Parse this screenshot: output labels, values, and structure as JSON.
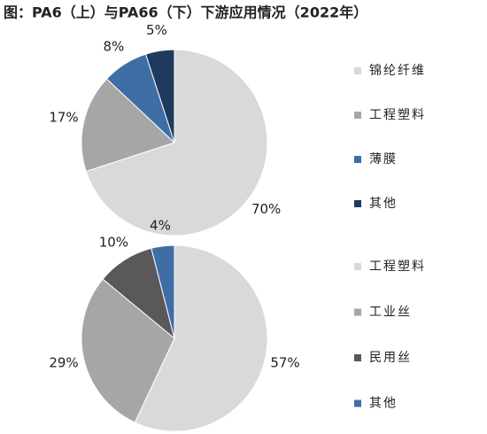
{
  "title": "图：PA6（上）与PA66（下）下游应用情况（2022年）",
  "chart_data": [
    {
      "type": "pie",
      "categories": [
        "锦纶纤维",
        "工程塑料",
        "薄膜",
        "其他"
      ],
      "values": [
        70,
        17,
        8,
        5
      ],
      "value_labels": [
        "70%",
        "17%",
        "8%",
        "5%"
      ],
      "colors": [
        "#d9d9d9",
        "#a6a6a6",
        "#3f6ea6",
        "#1f3a5f"
      ],
      "legend": "right"
    },
    {
      "type": "pie",
      "categories": [
        "工程塑料",
        "工业丝",
        "民用丝",
        "其他"
      ],
      "values": [
        57,
        29,
        10,
        4
      ],
      "value_labels": [
        "57%",
        "29%",
        "10%",
        "4%"
      ],
      "colors": [
        "#d9d9d9",
        "#a6a6a6",
        "#595959",
        "#3f6ea6"
      ],
      "legend": "right"
    }
  ]
}
